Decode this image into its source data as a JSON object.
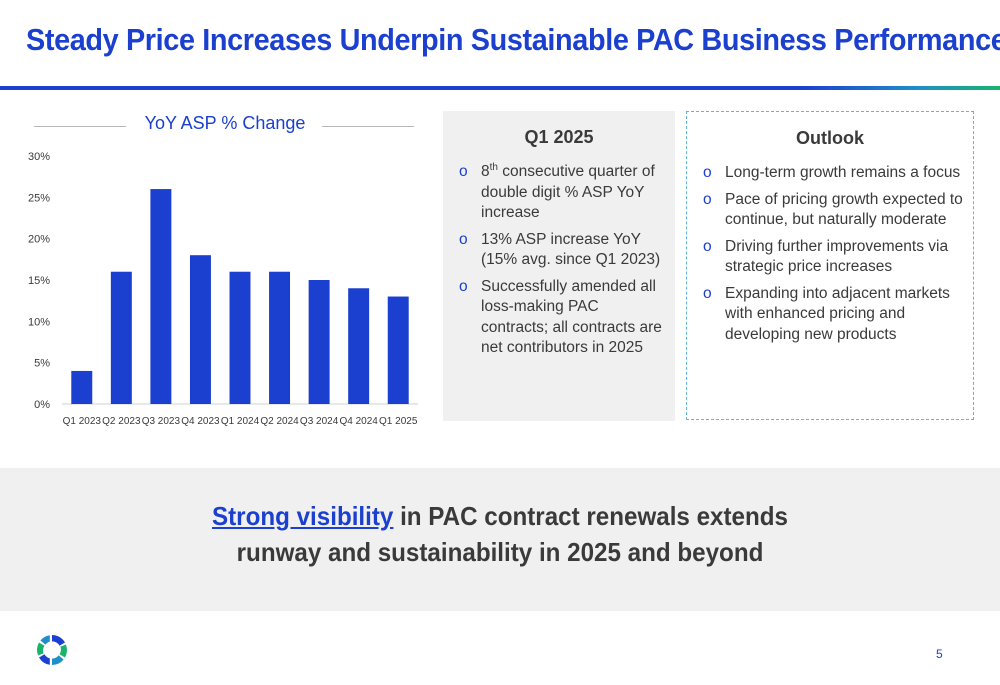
{
  "header": {
    "title": "Steady Price Increases Underpin Sustainable PAC Business Performance"
  },
  "chart_data": {
    "type": "bar",
    "title": "YoY ASP % Change",
    "categories": [
      "Q1 2023",
      "Q2 2023",
      "Q3 2023",
      "Q4 2023",
      "Q1 2024",
      "Q2 2024",
      "Q3 2024",
      "Q4 2024",
      "Q1 2025"
    ],
    "values": [
      4,
      16,
      26,
      18,
      16,
      16,
      15,
      14,
      13
    ],
    "ylim": [
      0,
      30
    ],
    "yticks": [
      "0%",
      "5%",
      "10%",
      "15%",
      "20%",
      "25%",
      "30%"
    ],
    "ytick_values": [
      0,
      5,
      10,
      15,
      20,
      25,
      30
    ],
    "grid": false,
    "bar_color": "#1b3fcf"
  },
  "q1_box": {
    "heading": "Q1 2025",
    "bullet_marker": "o",
    "items": [
      {
        "pre": "8",
        "sup": "th",
        "post": " consecutive quarter of double digit % ASP YoY increase"
      },
      {
        "text": "13% ASP increase YoY (15% avg. since Q1 2023)"
      },
      {
        "text": "Successfully amended all loss-making PAC contracts; all contracts are net contributors in 2025"
      }
    ]
  },
  "outlook_box": {
    "heading": "Outlook",
    "items": [
      "Long-term growth remains a focus",
      "Pace of pricing growth expected to continue, but naturally moderate",
      "Driving further improvements via strategic price increases",
      "Expanding into adjacent markets with enhanced pricing and developing new products"
    ]
  },
  "banner": {
    "link_text": "Strong visibility",
    "line1_rest": " in PAC contract renewals extends",
    "line2": "runway and sustainability in 2025 and beyond"
  },
  "footer": {
    "page_number": "5"
  },
  "colors": {
    "brand_blue": "#1b3fcf",
    "logo_colors": [
      "#1b3fcf",
      "#19b36b",
      "#1f8fc7"
    ]
  }
}
